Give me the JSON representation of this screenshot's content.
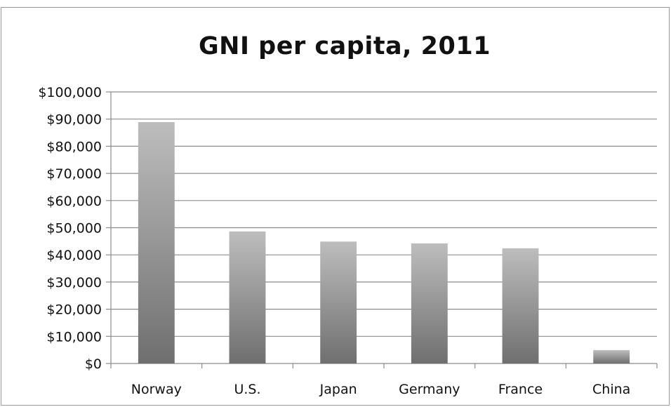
{
  "chart_data": {
    "type": "bar",
    "title": "GNI per capita, 2011",
    "xlabel": "",
    "ylabel": "",
    "categories": [
      "Norway",
      "U.S.",
      "Japan",
      "Germany",
      "France",
      "China"
    ],
    "values": [
      88890,
      48620,
      44900,
      44230,
      42420,
      4940
    ],
    "ylim": [
      0,
      100000
    ],
    "yticks": [
      0,
      10000,
      20000,
      30000,
      40000,
      50000,
      60000,
      70000,
      80000,
      90000,
      100000
    ],
    "ytick_labels": [
      "$0",
      "$10,000",
      "$20,000",
      "$30,000",
      "$40,000",
      "$50,000",
      "$60,000",
      "$70,000",
      "$80,000",
      "$90,000",
      "$100,000"
    ],
    "grid": true,
    "legend": "none",
    "colors": {
      "bar_light": "#bdbdbd",
      "bar_dark": "#6f6f6f",
      "grid": "#8c8c8c",
      "axis": "#8c8c8c",
      "text": "#111111"
    }
  }
}
